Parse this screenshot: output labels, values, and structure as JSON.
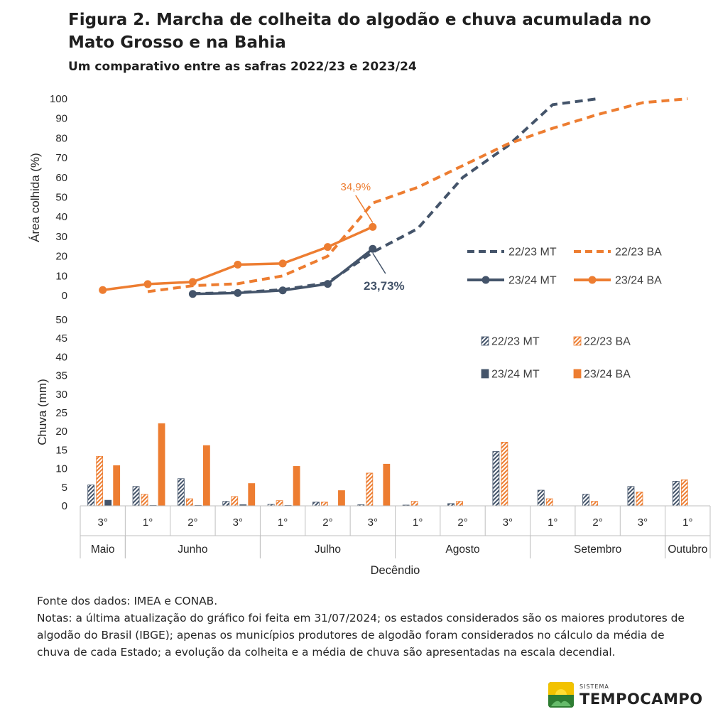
{
  "title": "Figura 2. Marcha de colheita do algodão e chuva acumulada no Mato Grosso e na Bahia",
  "subtitle": "Um comparativo entre as safras 2022/23 e 2023/24",
  "colors": {
    "mt": "#44546a",
    "ba": "#ed7d31"
  },
  "chart_data": [
    {
      "type": "line",
      "ylabel": "Área colhida (%)",
      "ylim": [
        0,
        100
      ],
      "yticks": [
        0,
        10,
        20,
        30,
        40,
        50,
        60,
        70,
        80,
        90,
        100
      ],
      "x_index": [
        0,
        1,
        2,
        3,
        4,
        5,
        6,
        7,
        8,
        9,
        10,
        11,
        12,
        13
      ],
      "series": [
        {
          "name": "22/23 MT",
          "style": "dashed",
          "x": [
            2,
            3,
            4,
            5,
            6,
            7,
            8,
            9,
            10,
            11
          ],
          "values": [
            1,
            1.5,
            3,
            6.5,
            22,
            34,
            60,
            76,
            97,
            100
          ]
        },
        {
          "name": "22/23 BA",
          "style": "dashed",
          "x": [
            1,
            2,
            3,
            4,
            5,
            6,
            7,
            8,
            9,
            10,
            11,
            12,
            13
          ],
          "values": [
            2,
            5,
            6,
            10,
            20,
            47,
            55,
            66,
            77,
            85,
            92,
            98,
            100
          ]
        },
        {
          "name": "23/24 MT",
          "style": "solid-marker",
          "x": [
            2,
            3,
            4,
            5,
            6
          ],
          "values": [
            0.8,
            1.3,
            2.6,
            5.9,
            23.73
          ]
        },
        {
          "name": "23/24 BA",
          "style": "solid-marker",
          "x": [
            0,
            1,
            2,
            3,
            4,
            5,
            6
          ],
          "values": [
            2.8,
            5.8,
            6.9,
            15.7,
            16.3,
            24.7,
            34.9
          ]
        }
      ],
      "annotations": [
        {
          "text": "34,9%",
          "series": "23/24 BA",
          "x": 6
        },
        {
          "text": "23,73%",
          "series": "23/24 MT",
          "x": 6
        }
      ],
      "legend_position": "bottom-right"
    },
    {
      "type": "bar",
      "ylabel": "Chuva (mm)",
      "xlabel": "Decêndio",
      "ylim": [
        0,
        50
      ],
      "yticks": [
        0,
        5,
        10,
        15,
        20,
        25,
        30,
        35,
        40,
        45,
        50
      ],
      "categories": [
        "3°",
        "1°",
        "2°",
        "3°",
        "1°",
        "2°",
        "3°",
        "1°",
        "2°",
        "3°",
        "1°",
        "2°",
        "3°",
        "1°"
      ],
      "months": [
        {
          "label": "Maio",
          "start": 0,
          "end": 0
        },
        {
          "label": "Junho",
          "start": 1,
          "end": 3
        },
        {
          "label": "Julho",
          "start": 4,
          "end": 6
        },
        {
          "label": "Agosto",
          "start": 7,
          "end": 9
        },
        {
          "label": "Setembro",
          "start": 10,
          "end": 12
        },
        {
          "label": "Outubro",
          "start": 13,
          "end": 13
        }
      ],
      "series": [
        {
          "name": "22/23 MT",
          "pattern": "hatch",
          "values": [
            5.6,
            5.2,
            7.3,
            1.2,
            0.4,
            1.0,
            0.3,
            0.2,
            0.6,
            14.6,
            4.2,
            3.1,
            5.2,
            6.6
          ]
        },
        {
          "name": "22/23 BA",
          "pattern": "hatch",
          "values": [
            13.3,
            3.1,
            1.9,
            2.5,
            1.4,
            1.0,
            8.8,
            1.2,
            1.2,
            17.1,
            1.9,
            1.2,
            3.7,
            7.0
          ]
        },
        {
          "name": "23/24 MT",
          "pattern": "solid",
          "values": [
            1.5,
            0.1,
            0.1,
            0.3,
            0.1,
            0,
            0,
            0,
            0,
            0,
            0,
            0,
            0,
            0
          ]
        },
        {
          "name": "23/24 BA",
          "pattern": "solid",
          "values": [
            10.8,
            22.1,
            16.2,
            6.0,
            10.6,
            4.1,
            11.2,
            0,
            0,
            0,
            0,
            0,
            0,
            0
          ]
        }
      ],
      "legend_position": "top-right"
    }
  ],
  "notes": {
    "source": "Fonte dos dados: IMEA e CONAB.",
    "text": "Notas: a última atualização do gráfico foi feita em 31/07/2024; os estados considerados são os maiores produtores de algodão do Brasil (IBGE); apenas os municípios produtores de algodão foram considerados no cálculo da média de chuva de cada Estado; a evolução da colheita e a média de chuva são apresentadas na escala decendial."
  },
  "logo": {
    "small": "SISTEMA",
    "word": "TEMPOCAMPO"
  }
}
